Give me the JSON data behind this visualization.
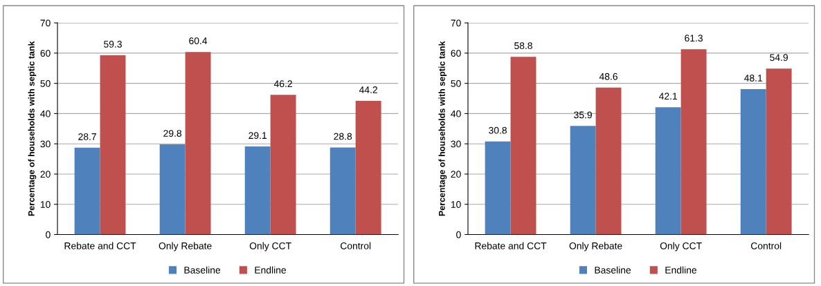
{
  "chart_data": [
    {
      "type": "bar",
      "ylabel": "Percentage of households with septic tank",
      "categories": [
        "Rebate and CCT",
        "Only Rebate",
        "Only CCT",
        "Control"
      ],
      "series": [
        {
          "name": "Baseline",
          "color": "#4f81bd",
          "values": [
            28.7,
            29.8,
            29.1,
            28.8
          ]
        },
        {
          "name": "Endline",
          "color": "#c0504d",
          "values": [
            59.3,
            60.4,
            46.2,
            44.2
          ]
        }
      ],
      "ylim": [
        0,
        70
      ],
      "yticks": [
        0,
        10,
        20,
        30,
        40,
        50,
        60,
        70
      ],
      "grid": "y",
      "legend": "bottom",
      "data_labels": true
    },
    {
      "type": "bar",
      "ylabel": "Percentage of households with septic tank",
      "categories": [
        "Rebate and CCT",
        "Only Rebate",
        "Only CCT",
        "Control"
      ],
      "series": [
        {
          "name": "Baseline",
          "color": "#4f81bd",
          "values": [
            30.8,
            35.9,
            42.1,
            48.1
          ]
        },
        {
          "name": "Endline",
          "color": "#c0504d",
          "values": [
            58.8,
            48.6,
            61.3,
            54.9
          ]
        }
      ],
      "ylim": [
        0,
        70
      ],
      "yticks": [
        0,
        10,
        20,
        30,
        40,
        50,
        60,
        70
      ],
      "grid": "y",
      "legend": "bottom",
      "data_labels": true
    }
  ]
}
